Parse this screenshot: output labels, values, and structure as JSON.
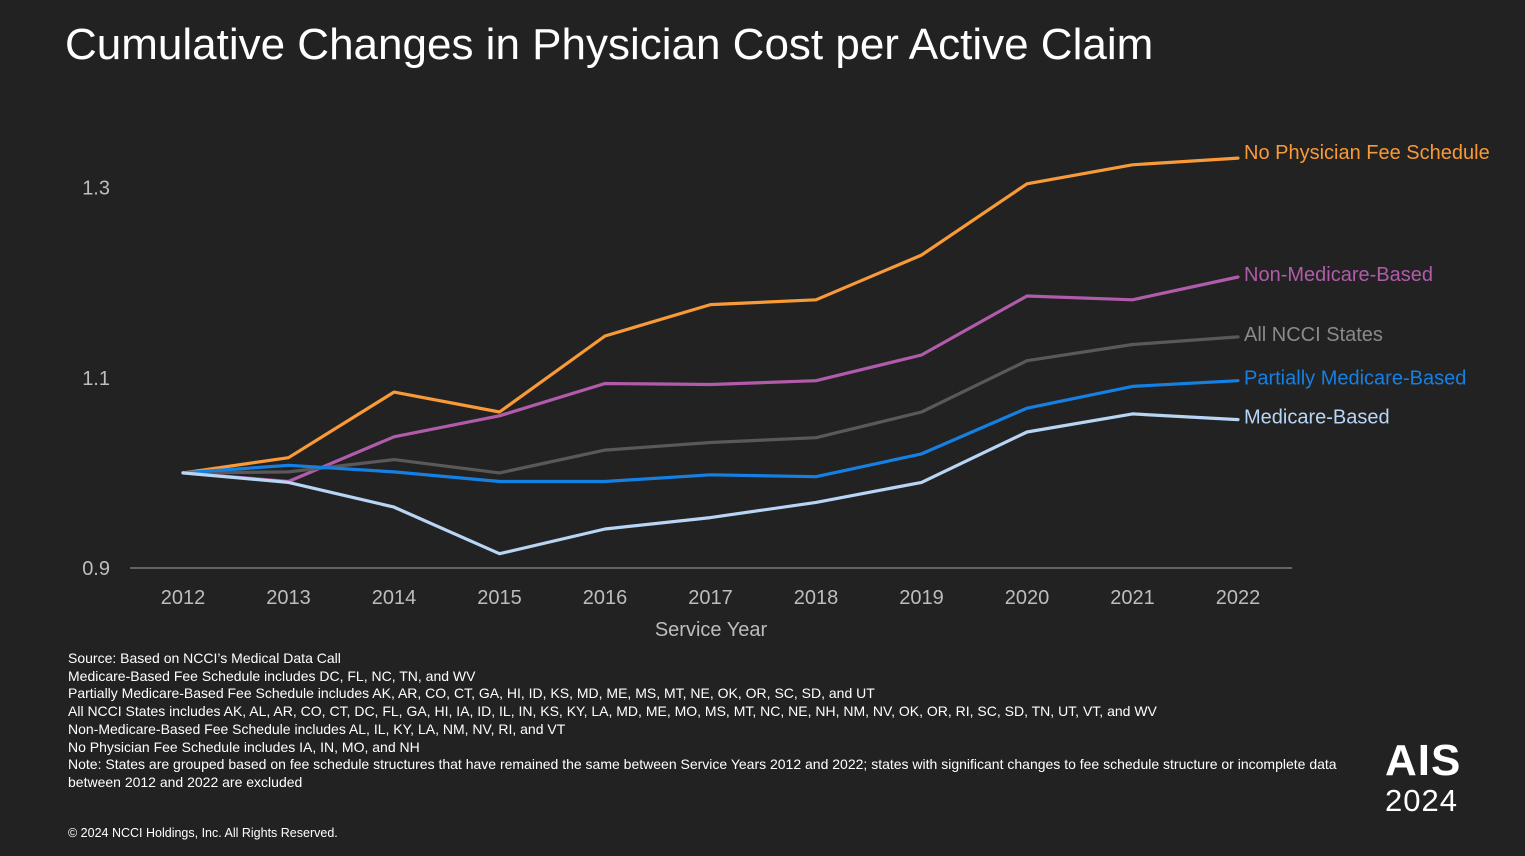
{
  "chart_data": {
    "type": "line",
    "title": "Cumulative Changes in Physician Cost per Active Claim",
    "xlabel": "Service Year",
    "ylabel": "",
    "categories": [
      "2012",
      "2013",
      "2014",
      "2015",
      "2016",
      "2017",
      "2018",
      "2019",
      "2020",
      "2021",
      "2022"
    ],
    "ylim": [
      0.9,
      1.35
    ],
    "yticks": [
      0.9,
      1.1,
      1.3
    ],
    "ytick_labels": [
      "0.9",
      "1.1",
      "1.3"
    ],
    "grid": false,
    "legend": "direct labels at right end of lines",
    "series": [
      {
        "name": "No Physician Fee Schedule",
        "color": "#F79A37",
        "values": [
          1.0,
          1.016,
          1.085,
          1.064,
          1.144,
          1.177,
          1.182,
          1.229,
          1.304,
          1.324,
          1.331
        ]
      },
      {
        "name": "Non-Medicare-Based",
        "color": "#B05CAB",
        "values": [
          1.0,
          0.991,
          1.038,
          1.06,
          1.094,
          1.093,
          1.097,
          1.124,
          1.186,
          1.182,
          1.206
        ]
      },
      {
        "name": "All NCCI States",
        "color": "#595959",
        "values": [
          1.0,
          1.001,
          1.014,
          1.0,
          1.024,
          1.032,
          1.037,
          1.064,
          1.118,
          1.135,
          1.143
        ]
      },
      {
        "name": "Partially Medicare-Based",
        "color": "#1580E4",
        "values": [
          1.0,
          1.008,
          1.001,
          0.991,
          0.991,
          0.998,
          0.996,
          1.02,
          1.068,
          1.091,
          1.097
        ]
      },
      {
        "name": "Medicare-Based",
        "color": "#B8D5F5",
        "values": [
          1.0,
          0.99,
          0.964,
          0.915,
          0.941,
          0.953,
          0.969,
          0.99,
          1.043,
          1.062,
          1.056
        ]
      }
    ]
  },
  "notes": {
    "source": "Source: Based on NCCI’s Medical Data Call",
    "medicare_based": "Medicare-Based Fee Schedule includes DC, FL, NC, TN, and WV",
    "partially_medicare_based": "Partially Medicare-Based Fee Schedule includes AK, AR, CO, CT, GA, HI, ID, KS, MD, ME, MS, MT, NE, OK, OR, SC, SD, and UT",
    "all_ncci": "All NCCI States includes AK, AL, AR, CO, CT, DC, FL, GA, HI, IA, ID, IL, IN, KS, KY, LA, MD, ME, MO, MS, MT, NC, NE, NH, NM, NV, OK, OR, RI, SC, SD, TN, UT, VT, and WV",
    "non_medicare_based": "Non-Medicare-Based Fee Schedule includes AL, IL, KY, LA, NM, NV, RI, and VT",
    "no_fee_schedule": "No Physician Fee Schedule includes IA, IN, MO, and NH",
    "note": "Note: States are grouped based on fee schedule structures that have remained the same between Service Years 2012 and 2022; states with significant changes to fee schedule structure or incomplete data between 2012 and 2022 are excluded"
  },
  "footer": {
    "copyright": "© 2024 NCCI Holdings, Inc. All Rights Reserved.",
    "logo_name": "AIS",
    "logo_year": "2024"
  }
}
